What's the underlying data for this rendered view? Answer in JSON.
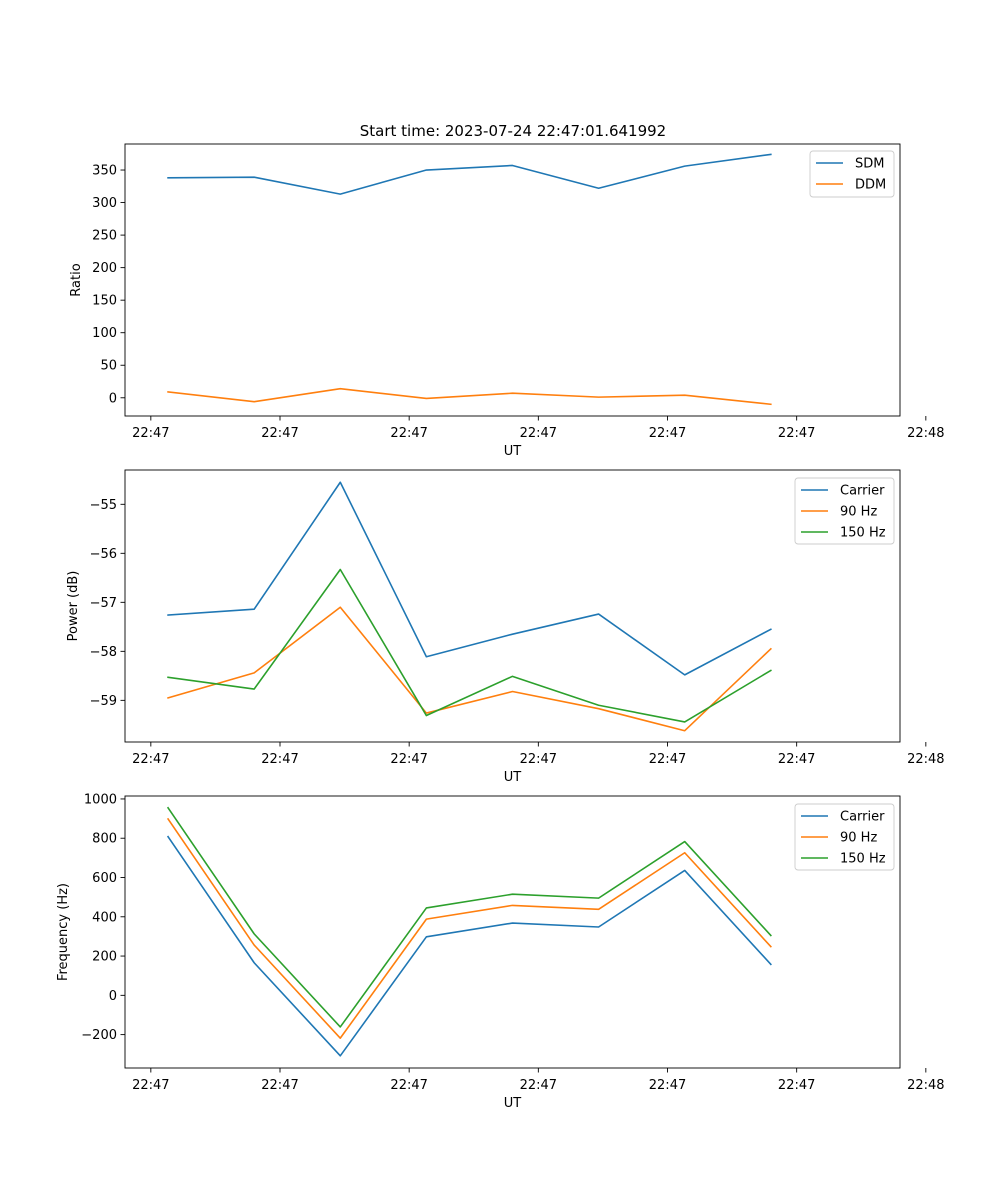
{
  "title": "Start time: 2023-07-24 22:47:01.641992",
  "colors": {
    "c0": "#1f77b4",
    "c1": "#ff7f0e",
    "c2": "#2ca02c"
  },
  "chart_data": [
    {
      "type": "line",
      "xlabel": "UT",
      "ylabel": "Ratio",
      "xlim": [
        -0.5,
        8.5
      ],
      "ylim": [
        -28,
        390
      ],
      "x": [
        0,
        1,
        2,
        3,
        4,
        5,
        6,
        7
      ],
      "xticks": [
        -0.2,
        1.3,
        2.8,
        4.3,
        5.8,
        7.3,
        8.8
      ],
      "xtick_labels": [
        "22:47",
        "22:47",
        "22:47",
        "22:47",
        "22:47",
        "22:47",
        "22:48"
      ],
      "yticks": [
        0,
        50,
        100,
        150,
        200,
        250,
        300,
        350
      ],
      "ytick_labels": [
        "0",
        "50",
        "100",
        "150",
        "200",
        "250",
        "300",
        "350"
      ],
      "legend": "top-right",
      "series": [
        {
          "name": "SDM",
          "color": "#1f77b4",
          "values": [
            338,
            339,
            313,
            350,
            357,
            322,
            356,
            374
          ]
        },
        {
          "name": "DDM",
          "color": "#ff7f0e",
          "values": [
            9,
            -6,
            14,
            -1,
            7,
            1,
            4,
            -10
          ]
        }
      ]
    },
    {
      "type": "line",
      "xlabel": "UT",
      "ylabel": "Power (dB)",
      "xlim": [
        -0.5,
        8.5
      ],
      "ylim": [
        -59.85,
        -54.3
      ],
      "x": [
        0,
        1,
        2,
        3,
        4,
        5,
        6,
        7
      ],
      "xticks": [
        -0.2,
        1.3,
        2.8,
        4.3,
        5.8,
        7.3,
        8.8
      ],
      "xtick_labels": [
        "22:47",
        "22:47",
        "22:47",
        "22:47",
        "22:47",
        "22:47",
        "22:48"
      ],
      "yticks": [
        -59,
        -58,
        -57,
        -56,
        -55
      ],
      "ytick_labels": [
        "−59",
        "−58",
        "−57",
        "−56",
        "−55"
      ],
      "legend": "top-right",
      "series": [
        {
          "name": "Carrier",
          "color": "#1f77b4",
          "values": [
            -57.26,
            -57.14,
            -54.55,
            -58.11,
            -57.65,
            -57.24,
            -58.48,
            -57.55
          ]
        },
        {
          "name": "90 Hz",
          "color": "#ff7f0e",
          "values": [
            -58.95,
            -58.44,
            -57.1,
            -59.26,
            -58.82,
            -59.17,
            -59.62,
            -57.95
          ]
        },
        {
          "name": "150 Hz",
          "color": "#2ca02c",
          "values": [
            -58.53,
            -58.77,
            -56.33,
            -59.31,
            -58.51,
            -59.1,
            -59.44,
            -58.39
          ]
        }
      ]
    },
    {
      "type": "line",
      "xlabel": "UT",
      "ylabel": "Frequency (Hz)",
      "xlim": [
        -0.5,
        8.5
      ],
      "ylim": [
        -370,
        1015
      ],
      "x": [
        0,
        1,
        2,
        3,
        4,
        5,
        6,
        7
      ],
      "xticks": [
        -0.2,
        1.3,
        2.8,
        4.3,
        5.8,
        7.3,
        8.8
      ],
      "xtick_labels": [
        "22:47",
        "22:47",
        "22:47",
        "22:47",
        "22:47",
        "22:47",
        "22:48"
      ],
      "yticks": [
        -200,
        0,
        200,
        400,
        600,
        800,
        1000
      ],
      "ytick_labels": [
        "−200",
        "0",
        "200",
        "400",
        "600",
        "800",
        "1000"
      ],
      "legend": "top-right",
      "series": [
        {
          "name": "Carrier",
          "color": "#1f77b4",
          "values": [
            808,
            166,
            -308,
            298,
            368,
            348,
            636,
            158
          ]
        },
        {
          "name": "90 Hz",
          "color": "#ff7f0e",
          "values": [
            898,
            256,
            -218,
            388,
            458,
            438,
            726,
            248
          ]
        },
        {
          "name": "150 Hz",
          "color": "#2ca02c",
          "values": [
            955,
            313,
            -161,
            445,
            515,
            495,
            783,
            305
          ]
        }
      ]
    }
  ]
}
